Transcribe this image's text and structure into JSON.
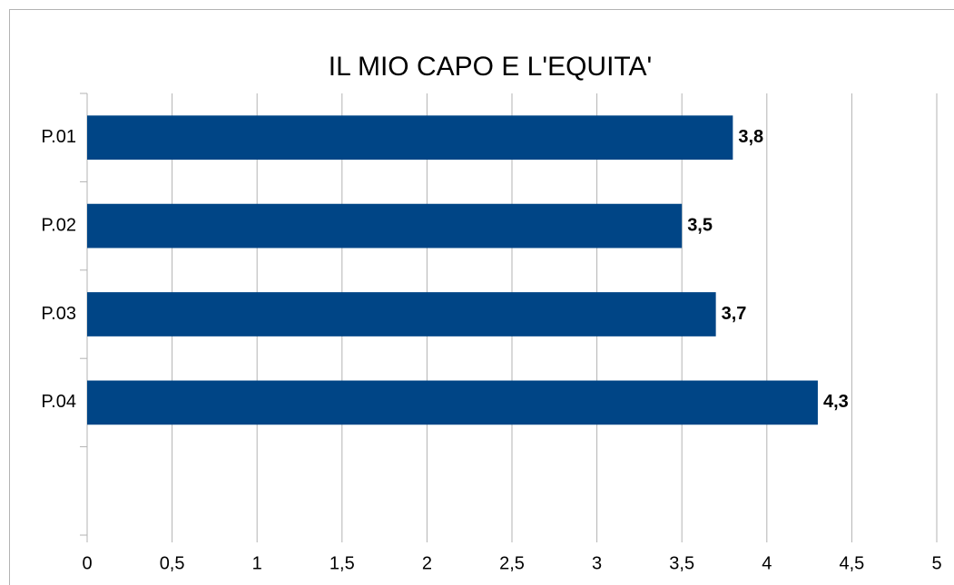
{
  "chart_data": {
    "type": "bar",
    "orientation": "horizontal",
    "title": "IL MIO CAPO E L'EQUITA'",
    "categories": [
      "P.01",
      "P.02",
      "P.03",
      "P.04",
      null
    ],
    "values": [
      3.8,
      3.5,
      3.7,
      4.3,
      null
    ],
    "value_labels": [
      "3,8",
      "3,5",
      "3,7",
      "4,3",
      null
    ],
    "color": "#004586",
    "xlim": [
      0,
      5
    ],
    "xticks": [
      0,
      {
        "value": 0.5,
        "label": "0,5"
      },
      1,
      {
        "value": 1.5,
        "label": "1,5"
      },
      2,
      {
        "value": 2.5,
        "label": "2,5"
      },
      3,
      {
        "value": 3.5,
        "label": "3,5"
      },
      4,
      {
        "value": 4.5,
        "label": "4,5"
      },
      5
    ],
    "grid": true
  }
}
